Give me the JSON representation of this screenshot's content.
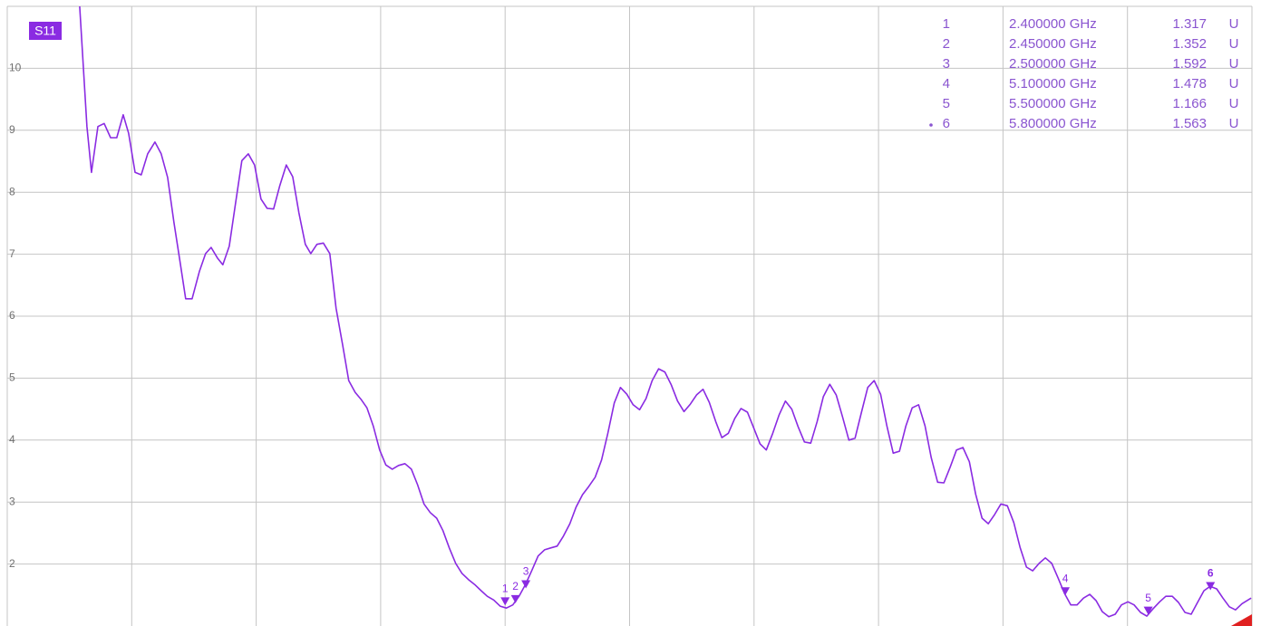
{
  "chart_data": {
    "type": "line",
    "xlim": [
      0,
      6
    ],
    "xticks": [
      0,
      0.6,
      1.2,
      1.8,
      2.4,
      3,
      3.6,
      4.2,
      4.8,
      5.4,
      6
    ],
    "ylim": [
      1,
      11
    ],
    "yticks": [
      2,
      3,
      4,
      5,
      6,
      7,
      8,
      9,
      10
    ],
    "grid": true,
    "x": [
      0.349,
      0.384,
      0.406,
      0.437,
      0.467,
      0.498,
      0.528,
      0.559,
      0.585,
      0.616,
      0.646,
      0.677,
      0.712,
      0.742,
      0.773,
      0.803,
      0.834,
      0.86,
      0.891,
      0.926,
      0.956,
      0.983,
      1.013,
      1.039,
      1.07,
      1.1,
      1.131,
      1.162,
      1.192,
      1.223,
      1.253,
      1.284,
      1.314,
      1.345,
      1.376,
      1.406,
      1.437,
      1.463,
      1.493,
      1.524,
      1.555,
      1.585,
      1.616,
      1.646,
      1.677,
      1.707,
      1.734,
      1.764,
      1.795,
      1.825,
      1.856,
      1.886,
      1.917,
      1.948,
      1.978,
      2.009,
      2.039,
      2.07,
      2.1,
      2.131,
      2.162,
      2.192,
      2.223,
      2.253,
      2.284,
      2.314,
      2.345,
      2.376,
      2.406,
      2.437,
      2.467,
      2.498,
      2.528,
      2.559,
      2.59,
      2.62,
      2.651,
      2.681,
      2.712,
      2.742,
      2.773,
      2.803,
      2.834,
      2.865,
      2.895,
      2.926,
      2.956,
      2.987,
      3.017,
      3.048,
      3.079,
      3.109,
      3.14,
      3.17,
      3.201,
      3.231,
      3.262,
      3.293,
      3.323,
      3.354,
      3.384,
      3.415,
      3.445,
      3.476,
      3.507,
      3.537,
      3.568,
      3.598,
      3.629,
      3.659,
      3.69,
      3.721,
      3.751,
      3.782,
      3.812,
      3.843,
      3.873,
      3.904,
      3.934,
      3.965,
      3.996,
      4.026,
      4.057,
      4.087,
      4.118,
      4.148,
      4.179,
      4.21,
      4.24,
      4.271,
      4.301,
      4.332,
      4.362,
      4.393,
      4.424,
      4.454,
      4.485,
      4.515,
      4.546,
      4.576,
      4.607,
      4.638,
      4.668,
      4.699,
      4.729,
      4.76,
      4.79,
      4.821,
      4.852,
      4.882,
      4.913,
      4.943,
      4.974,
      5.004,
      5.035,
      5.066,
      5.096,
      5.127,
      5.157,
      5.188,
      5.218,
      5.249,
      5.279,
      5.31,
      5.341,
      5.371,
      5.402,
      5.432,
      5.463,
      5.493,
      5.524,
      5.555,
      5.585,
      5.616,
      5.646,
      5.677,
      5.707,
      5.738,
      5.769,
      5.799,
      5.83,
      5.86,
      5.891,
      5.921,
      5.952,
      5.996
    ],
    "series": [
      {
        "name": "S11",
        "color": "#8a2be2",
        "values": [
          11.0,
          9.06,
          8.32,
          9.06,
          9.11,
          8.88,
          8.88,
          9.25,
          8.95,
          8.32,
          8.28,
          8.62,
          8.81,
          8.62,
          8.24,
          7.52,
          6.86,
          6.28,
          6.28,
          6.72,
          7.01,
          7.11,
          6.94,
          6.83,
          7.13,
          7.81,
          8.51,
          8.62,
          8.44,
          7.89,
          7.74,
          7.73,
          8.11,
          8.44,
          8.25,
          7.67,
          7.16,
          7.01,
          7.16,
          7.18,
          7.01,
          6.13,
          5.55,
          4.96,
          4.77,
          4.65,
          4.52,
          4.23,
          3.84,
          3.6,
          3.53,
          3.59,
          3.62,
          3.53,
          3.28,
          2.97,
          2.83,
          2.74,
          2.54,
          2.26,
          2.01,
          1.85,
          1.75,
          1.67,
          1.57,
          1.48,
          1.42,
          1.32,
          1.29,
          1.34,
          1.48,
          1.67,
          1.89,
          2.13,
          2.23,
          2.26,
          2.29,
          2.45,
          2.65,
          2.92,
          3.12,
          3.25,
          3.4,
          3.68,
          4.11,
          4.6,
          4.85,
          4.74,
          4.57,
          4.49,
          4.67,
          4.96,
          5.15,
          5.1,
          4.89,
          4.63,
          4.46,
          4.58,
          4.73,
          4.82,
          4.61,
          4.3,
          4.04,
          4.11,
          4.35,
          4.51,
          4.45,
          4.2,
          3.94,
          3.84,
          4.11,
          4.41,
          4.63,
          4.5,
          4.22,
          3.97,
          3.95,
          4.3,
          4.7,
          4.9,
          4.73,
          4.38,
          4.0,
          4.03,
          4.45,
          4.85,
          4.96,
          4.74,
          4.23,
          3.79,
          3.82,
          4.23,
          4.52,
          4.57,
          4.23,
          3.72,
          3.32,
          3.31,
          3.57,
          3.84,
          3.88,
          3.65,
          3.13,
          2.74,
          2.65,
          2.8,
          2.97,
          2.94,
          2.67,
          2.27,
          1.95,
          1.89,
          2.01,
          2.1,
          2.01,
          1.77,
          1.53,
          1.34,
          1.34,
          1.45,
          1.51,
          1.41,
          1.23,
          1.15,
          1.19,
          1.34,
          1.39,
          1.34,
          1.22,
          1.16,
          1.28,
          1.39,
          1.48,
          1.48,
          1.38,
          1.22,
          1.19,
          1.38,
          1.57,
          1.64,
          1.6,
          1.45,
          1.31,
          1.26,
          1.36,
          1.45
        ]
      }
    ],
    "markers": [
      {
        "label": "1",
        "frequency": 2.4,
        "frequency_label": "2.400000 GHz",
        "value": 1.317,
        "unit": "U"
      },
      {
        "label": "2",
        "frequency": 2.45,
        "frequency_label": "2.450000 GHz",
        "value": 1.352,
        "unit": "U"
      },
      {
        "label": "3",
        "frequency": 2.5,
        "frequency_label": "2.500000 GHz",
        "value": 1.592,
        "unit": "U"
      },
      {
        "label": "4",
        "frequency": 5.1,
        "frequency_label": "5.100000 GHz",
        "value": 1.478,
        "unit": "U"
      },
      {
        "label": "5",
        "frequency": 5.5,
        "frequency_label": "5.500000 GHz",
        "value": 1.166,
        "unit": "U"
      },
      {
        "label": "6",
        "frequency": 5.8,
        "frequency_label": "5.800000 GHz",
        "value": 1.563,
        "unit": "U",
        "active": true
      }
    ]
  }
}
